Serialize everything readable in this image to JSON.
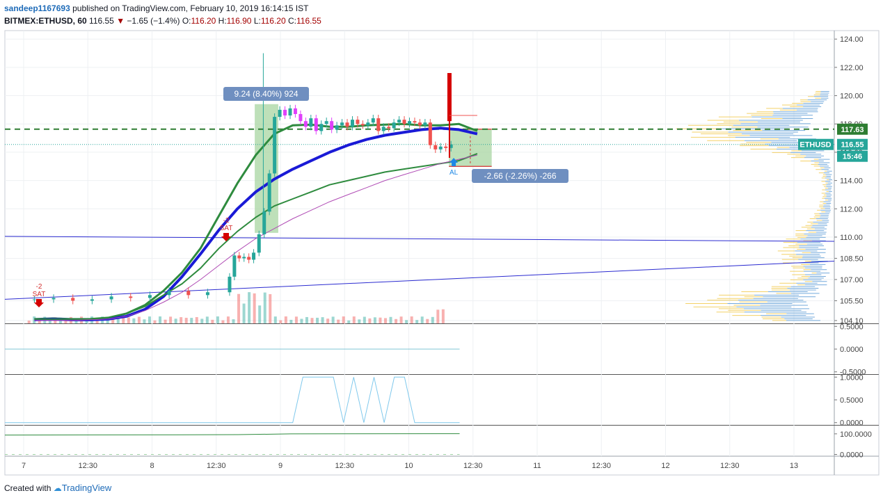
{
  "header": {
    "username": "sandeep1167693",
    "published_text": "published on TradingView.com, February 10, 2019 16:14:15 IST",
    "symbol": "BITMEX:ETHUSD, 60",
    "last": "116.55",
    "change": "−1.65 (−1.4%)",
    "o_label": "O:",
    "o_value": "116.20",
    "h_label": "H:",
    "h_value": "116.90",
    "l_label": "L:",
    "l_value": "116.20",
    "c_label": "C:",
    "c_value": "116.55"
  },
  "footer": {
    "created_with": "Created with",
    "brand": "TradingView"
  },
  "colors": {
    "up": "#26a69a",
    "down": "#ef5350",
    "magenta": "#e040fb",
    "ma_blue": "#1a1ad6",
    "ma_green": "#2e8b3e",
    "trend": "#2a2ad0",
    "dashed_level": "#2e7d32",
    "vp_blue": "#5b9bd5",
    "vp_yellow": "#f2c94c"
  },
  "chart_data": [
    {
      "type": "line",
      "pane": "price",
      "y_ticks": [
        "124.00",
        "122.00",
        "120.00",
        "118.00",
        "116.00",
        "114.00",
        "112.00",
        "110.00",
        "108.50",
        "107.00",
        "105.50",
        "104.10"
      ],
      "ylim": [
        103.9,
        124.6
      ],
      "x_ticks": [
        "7",
        "12:30",
        "8",
        "12:30",
        "9",
        "12:30",
        "10",
        "12:30",
        "11",
        "12:30",
        "12",
        "12:30",
        "13"
      ],
      "price_labels": [
        {
          "text": "117.63",
          "value": 117.63,
          "color": "#2e7d32"
        },
        {
          "text": "116.55",
          "value": 116.55,
          "color": "#26a69a"
        },
        {
          "text": "15:46",
          "value": 115.85,
          "color": "#26a69a"
        }
      ],
      "symbol_tag": "ETHUSD",
      "dashed_level": 117.63,
      "current_price": 116.55,
      "annotations": [
        {
          "text": "9.24 (8.40%) 924",
          "kind": "long-range"
        },
        {
          "text": "-2.66 (-2.26%) -266",
          "kind": "short-range"
        }
      ],
      "signals": [
        {
          "label": "-2",
          "sub": "SAT",
          "direction": "down"
        },
        {
          "label": "-2",
          "sub": "SAT",
          "direction": "down"
        },
        {
          "label": "AL",
          "direction": "up"
        }
      ],
      "range_boxes": [
        {
          "kind": "long",
          "top": 119.4,
          "bottom": 110.3
        },
        {
          "kind": "short",
          "top": 117.63,
          "bottom": 115.0
        }
      ],
      "candles_close": [
        105.6,
        105.7,
        105.5,
        105.6,
        105.8,
        105.7,
        105.9,
        106.2,
        105.9,
        106.1,
        107.2,
        108.7,
        108.5,
        108.6,
        108.4,
        108.9,
        110.2,
        111.8,
        114.5,
        118.5,
        119.0,
        118.6,
        119.1,
        118.7,
        118.2,
        117.8,
        118.4,
        117.5,
        118.0,
        118.2,
        117.6,
        117.9,
        118.1,
        117.8,
        118.3,
        118.0,
        117.9,
        118.1,
        118.4,
        117.5,
        117.8,
        117.7,
        118.1,
        118.3,
        118.0,
        118.2,
        118.1,
        117.9,
        118.1,
        116.5,
        116.2,
        116.4,
        116.3,
        116.55
      ],
      "series": [
        {
          "name": "",
          "values": [
            104.2,
            104.25,
            104.2,
            104.2,
            104.3,
            104.6,
            105.2,
            106.2,
            107.5,
            109.2,
            111.5,
            113.8,
            115.8,
            117.3,
            117.9,
            117.95,
            117.8,
            117.8,
            117.9,
            117.95,
            118.0,
            117.9,
            117.9,
            118.0,
            117.5
          ]
        },
        {
          "name": "",
          "values": [
            104.15,
            104.2,
            104.15,
            104.15,
            104.2,
            104.4,
            104.9,
            105.8,
            107.2,
            108.8,
            110.5,
            112.0,
            113.2,
            114.1,
            114.8,
            115.4,
            116.0,
            116.5,
            116.9,
            117.2,
            117.4,
            117.6,
            117.7,
            117.6,
            117.3
          ]
        },
        {
          "name": "",
          "values": [
            104.2,
            104.2,
            104.2,
            104.2,
            104.3,
            104.6,
            105.1,
            105.9,
            106.7,
            107.8,
            109.2,
            110.4,
            111.4,
            112.2,
            112.7,
            113.2,
            113.7,
            114.0,
            114.3,
            114.6,
            114.8,
            115.0,
            115.2,
            115.4,
            115.9
          ]
        },
        {
          "name": "",
          "values": [
            104.1,
            104.1,
            104.1,
            104.15,
            104.2,
            104.4,
            104.8,
            105.4,
            106.1,
            107.0,
            108.0,
            109.0,
            109.9,
            110.6,
            111.3,
            111.9,
            112.5,
            113.0,
            113.5,
            114.0,
            114.4,
            114.8,
            115.2,
            115.5,
            115.8
          ]
        }
      ],
      "trendlines": [
        {
          "from": 110.05,
          "to": 109.7
        },
        {
          "from": 105.6,
          "to": 108.3
        }
      ]
    },
    {
      "type": "line",
      "pane": "oscillator",
      "y_ticks": [
        "0.5000",
        "0.0000",
        "-0.5000"
      ],
      "ylim": [
        -0.55,
        0.55
      ]
    },
    {
      "type": "line",
      "pane": "binary-signal",
      "y_ticks": [
        "1.0000",
        "0.5000",
        "0.0000"
      ],
      "ylim": [
        -0.05,
        1.05
      ],
      "values": [
        0,
        0,
        0,
        0,
        0,
        0,
        0,
        0,
        1,
        1,
        1,
        1,
        0,
        1,
        0,
        1,
        0,
        1,
        1,
        0,
        0,
        0,
        0,
        0
      ]
    },
    {
      "type": "line",
      "pane": "percent",
      "y_ticks": [
        "100.0000",
        "0.0000"
      ],
      "ylim": [
        -5,
        140
      ]
    }
  ]
}
